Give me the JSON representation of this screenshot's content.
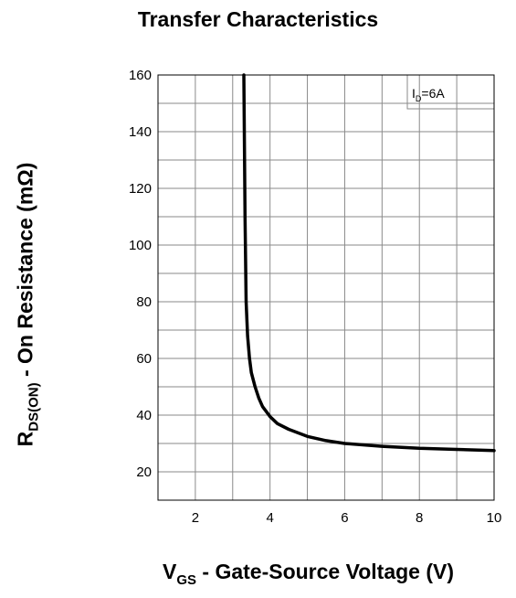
{
  "chart_data": {
    "type": "line",
    "title": "Transfer Characteristics",
    "xlabel": {
      "main": "V",
      "sub": "GS",
      "rest": " - Gate-Source Voltage (V)"
    },
    "ylabel": {
      "main": "R",
      "sub": "DS(ON)",
      "rest": " - On Resistance (mΩ)"
    },
    "xlim": [
      1,
      10
    ],
    "ylim": [
      10,
      160
    ],
    "xticks": [
      2,
      4,
      6,
      8,
      10
    ],
    "yticks": [
      20,
      40,
      60,
      80,
      100,
      120,
      140,
      160
    ],
    "grid": true,
    "annotation": {
      "main": "I",
      "sub": "D",
      "rest": "=6A"
    },
    "series": [
      {
        "x": [
          3.3,
          3.33,
          3.36,
          3.4,
          3.45,
          3.5,
          3.6,
          3.7,
          3.8,
          4.0,
          4.2,
          4.5,
          5.0,
          5.5,
          6.0,
          7.0,
          8.0,
          9.0,
          10.0
        ],
        "y": [
          160,
          110,
          80,
          68,
          60,
          55,
          50,
          46,
          43,
          39.5,
          37,
          35,
          32.5,
          31,
          30,
          29,
          28.3,
          27.9,
          27.5
        ]
      }
    ]
  }
}
